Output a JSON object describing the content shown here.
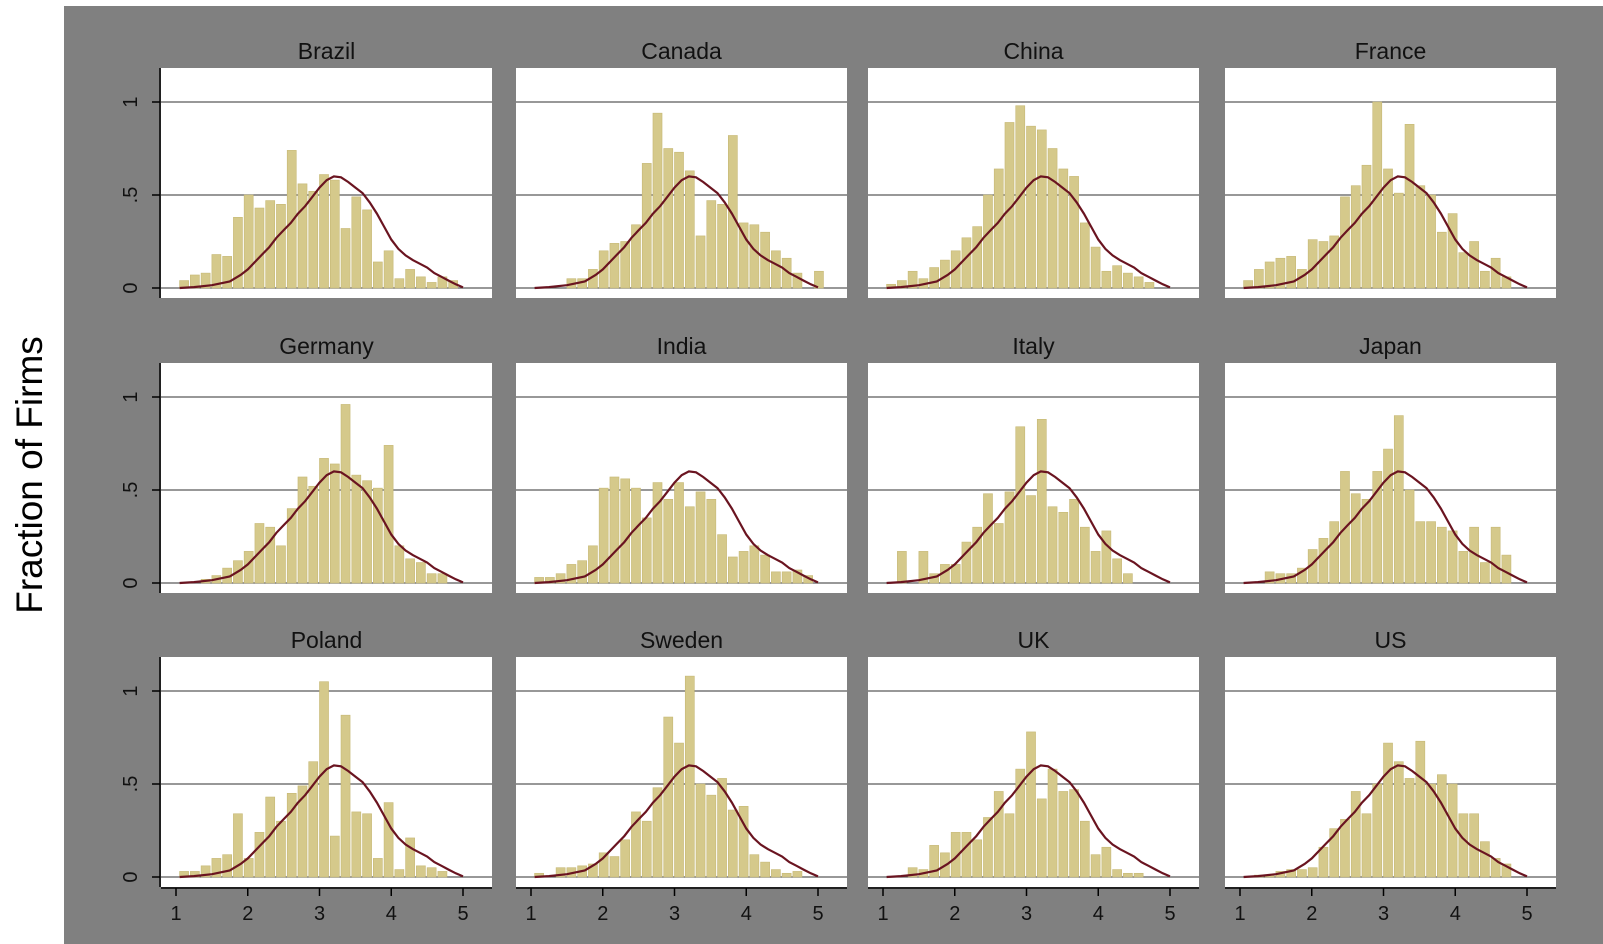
{
  "colors": {
    "background": "#ffffff",
    "graph_region": "#808080",
    "plot_area": "#ffffff",
    "grid": "#5a5a5a",
    "axis": "#000000",
    "bar_fill": "#d5c98b",
    "bar_edge": "#c6b875",
    "density_line": "#6a1420",
    "text": "#111111"
  },
  "chart_data": {
    "type": "bar",
    "layout": "small-multiples 3x4",
    "ytitle": "Fraction of Firms",
    "xlabel": "",
    "xlim": [
      1,
      5
    ],
    "ylim": [
      0,
      1
    ],
    "x_ticks": [
      "1",
      "2",
      "3",
      "4",
      "5"
    ],
    "y_ticks": [
      "0",
      ".5",
      "1"
    ],
    "grid": true,
    "density": {
      "x": [
        1.05,
        1.25,
        1.5,
        1.75,
        1.9,
        2.0,
        2.1,
        2.2,
        2.3,
        2.4,
        2.5,
        2.6,
        2.7,
        2.8,
        2.9,
        3.0,
        3.1,
        3.2,
        3.3,
        3.4,
        3.5,
        3.6,
        3.7,
        3.8,
        3.9,
        4.0,
        4.1,
        4.2,
        4.3,
        4.4,
        4.5,
        4.6,
        4.7,
        4.8,
        4.9,
        5.0
      ],
      "y": [
        0.0,
        0.005,
        0.015,
        0.035,
        0.07,
        0.1,
        0.14,
        0.18,
        0.22,
        0.27,
        0.31,
        0.35,
        0.4,
        0.44,
        0.49,
        0.54,
        0.58,
        0.6,
        0.595,
        0.57,
        0.54,
        0.51,
        0.46,
        0.4,
        0.33,
        0.26,
        0.21,
        0.175,
        0.15,
        0.13,
        0.11,
        0.08,
        0.06,
        0.04,
        0.02,
        0.003
      ]
    },
    "panels": [
      {
        "title": "Brazil",
        "bars": [
          [
            1.05,
            0.04
          ],
          [
            1.2,
            0.07
          ],
          [
            1.35,
            0.08
          ],
          [
            1.5,
            0.18
          ],
          [
            1.65,
            0.17
          ],
          [
            1.8,
            0.38
          ],
          [
            1.95,
            0.5
          ],
          [
            2.1,
            0.43
          ],
          [
            2.25,
            0.47
          ],
          [
            2.4,
            0.45
          ],
          [
            2.55,
            0.74
          ],
          [
            2.7,
            0.56
          ],
          [
            2.85,
            0.52
          ],
          [
            3.0,
            0.61
          ],
          [
            3.15,
            0.58
          ],
          [
            3.3,
            0.32
          ],
          [
            3.45,
            0.49
          ],
          [
            3.6,
            0.42
          ],
          [
            3.75,
            0.14
          ],
          [
            3.9,
            0.2
          ],
          [
            4.05,
            0.05
          ],
          [
            4.2,
            0.1
          ],
          [
            4.35,
            0.06
          ],
          [
            4.5,
            0.03
          ],
          [
            4.65,
            0.06
          ],
          [
            4.8,
            0.04
          ]
        ]
      },
      {
        "title": "Canada",
        "bars": [
          [
            1.5,
            0.05
          ],
          [
            1.65,
            0.05
          ],
          [
            1.8,
            0.1
          ],
          [
            1.95,
            0.2
          ],
          [
            2.1,
            0.24
          ],
          [
            2.25,
            0.25
          ],
          [
            2.4,
            0.34
          ],
          [
            2.55,
            0.67
          ],
          [
            2.7,
            0.94
          ],
          [
            2.85,
            0.75
          ],
          [
            3.0,
            0.73
          ],
          [
            3.15,
            0.63
          ],
          [
            3.3,
            0.28
          ],
          [
            3.45,
            0.47
          ],
          [
            3.6,
            0.45
          ],
          [
            3.75,
            0.82
          ],
          [
            3.9,
            0.35
          ],
          [
            4.05,
            0.34
          ],
          [
            4.2,
            0.3
          ],
          [
            4.35,
            0.2
          ],
          [
            4.5,
            0.16
          ],
          [
            4.65,
            0.08
          ],
          [
            4.95,
            0.09
          ]
        ]
      },
      {
        "title": "China",
        "bars": [
          [
            1.05,
            0.02
          ],
          [
            1.2,
            0.04
          ],
          [
            1.35,
            0.09
          ],
          [
            1.5,
            0.05
          ],
          [
            1.65,
            0.11
          ],
          [
            1.8,
            0.15
          ],
          [
            1.95,
            0.2
          ],
          [
            2.1,
            0.27
          ],
          [
            2.25,
            0.33
          ],
          [
            2.4,
            0.5
          ],
          [
            2.55,
            0.64
          ],
          [
            2.7,
            0.89
          ],
          [
            2.85,
            0.98
          ],
          [
            3.0,
            0.87
          ],
          [
            3.15,
            0.85
          ],
          [
            3.3,
            0.75
          ],
          [
            3.45,
            0.64
          ],
          [
            3.6,
            0.6
          ],
          [
            3.75,
            0.35
          ],
          [
            3.9,
            0.22
          ],
          [
            4.05,
            0.09
          ],
          [
            4.2,
            0.12
          ],
          [
            4.35,
            0.08
          ],
          [
            4.5,
            0.06
          ],
          [
            4.65,
            0.03
          ]
        ]
      },
      {
        "title": "France",
        "bars": [
          [
            1.05,
            0.04
          ],
          [
            1.2,
            0.1
          ],
          [
            1.35,
            0.14
          ],
          [
            1.5,
            0.16
          ],
          [
            1.65,
            0.17
          ],
          [
            1.8,
            0.1
          ],
          [
            1.95,
            0.26
          ],
          [
            2.1,
            0.25
          ],
          [
            2.25,
            0.28
          ],
          [
            2.4,
            0.49
          ],
          [
            2.55,
            0.55
          ],
          [
            2.7,
            0.66
          ],
          [
            2.85,
            1.0
          ],
          [
            3.0,
            0.64
          ],
          [
            3.15,
            0.51
          ],
          [
            3.3,
            0.88
          ],
          [
            3.45,
            0.55
          ],
          [
            3.6,
            0.5
          ],
          [
            3.75,
            0.3
          ],
          [
            3.9,
            0.4
          ],
          [
            4.05,
            0.19
          ],
          [
            4.2,
            0.25
          ],
          [
            4.35,
            0.09
          ],
          [
            4.5,
            0.16
          ],
          [
            4.65,
            0.06
          ]
        ]
      },
      {
        "title": "Germany",
        "bars": [
          [
            1.35,
            0.02
          ],
          [
            1.5,
            0.04
          ],
          [
            1.65,
            0.08
          ],
          [
            1.8,
            0.12
          ],
          [
            1.95,
            0.17
          ],
          [
            2.1,
            0.32
          ],
          [
            2.25,
            0.3
          ],
          [
            2.4,
            0.2
          ],
          [
            2.55,
            0.4
          ],
          [
            2.7,
            0.57
          ],
          [
            2.85,
            0.52
          ],
          [
            3.0,
            0.67
          ],
          [
            3.15,
            0.64
          ],
          [
            3.3,
            0.96
          ],
          [
            3.45,
            0.58
          ],
          [
            3.6,
            0.55
          ],
          [
            3.75,
            0.51
          ],
          [
            3.9,
            0.74
          ],
          [
            4.05,
            0.2
          ],
          [
            4.2,
            0.13
          ],
          [
            4.35,
            0.11
          ],
          [
            4.5,
            0.05
          ],
          [
            4.65,
            0.05
          ]
        ]
      },
      {
        "title": "India",
        "bars": [
          [
            1.05,
            0.03
          ],
          [
            1.2,
            0.03
          ],
          [
            1.35,
            0.05
          ],
          [
            1.5,
            0.1
          ],
          [
            1.65,
            0.12
          ],
          [
            1.8,
            0.2
          ],
          [
            1.95,
            0.51
          ],
          [
            2.1,
            0.57
          ],
          [
            2.25,
            0.56
          ],
          [
            2.4,
            0.51
          ],
          [
            2.55,
            0.35
          ],
          [
            2.7,
            0.54
          ],
          [
            2.85,
            0.45
          ],
          [
            3.0,
            0.54
          ],
          [
            3.15,
            0.41
          ],
          [
            3.3,
            0.49
          ],
          [
            3.45,
            0.45
          ],
          [
            3.6,
            0.26
          ],
          [
            3.75,
            0.14
          ],
          [
            3.9,
            0.17
          ],
          [
            4.05,
            0.2
          ],
          [
            4.2,
            0.15
          ],
          [
            4.35,
            0.06
          ],
          [
            4.5,
            0.06
          ],
          [
            4.65,
            0.07
          ],
          [
            4.8,
            0.04
          ]
        ]
      },
      {
        "title": "Italy",
        "bars": [
          [
            1.2,
            0.17
          ],
          [
            1.5,
            0.17
          ],
          [
            1.65,
            0.05
          ],
          [
            1.8,
            0.1
          ],
          [
            1.95,
            0.1
          ],
          [
            2.1,
            0.22
          ],
          [
            2.25,
            0.3
          ],
          [
            2.4,
            0.48
          ],
          [
            2.55,
            0.32
          ],
          [
            2.7,
            0.49
          ],
          [
            2.85,
            0.84
          ],
          [
            3.0,
            0.47
          ],
          [
            3.15,
            0.88
          ],
          [
            3.3,
            0.41
          ],
          [
            3.45,
            0.38
          ],
          [
            3.6,
            0.45
          ],
          [
            3.75,
            0.3
          ],
          [
            3.9,
            0.17
          ],
          [
            4.05,
            0.28
          ],
          [
            4.2,
            0.13
          ],
          [
            4.35,
            0.05
          ]
        ]
      },
      {
        "title": "Japan",
        "bars": [
          [
            1.35,
            0.06
          ],
          [
            1.5,
            0.05
          ],
          [
            1.65,
            0.05
          ],
          [
            1.8,
            0.08
          ],
          [
            1.95,
            0.18
          ],
          [
            2.1,
            0.24
          ],
          [
            2.25,
            0.33
          ],
          [
            2.4,
            0.6
          ],
          [
            2.55,
            0.48
          ],
          [
            2.7,
            0.45
          ],
          [
            2.85,
            0.6
          ],
          [
            3.0,
            0.72
          ],
          [
            3.15,
            0.9
          ],
          [
            3.3,
            0.5
          ],
          [
            3.45,
            0.33
          ],
          [
            3.6,
            0.33
          ],
          [
            3.75,
            0.3
          ],
          [
            3.9,
            0.28
          ],
          [
            4.05,
            0.17
          ],
          [
            4.2,
            0.3
          ],
          [
            4.35,
            0.11
          ],
          [
            4.5,
            0.3
          ],
          [
            4.65,
            0.15
          ]
        ]
      },
      {
        "title": "Poland",
        "bars": [
          [
            1.05,
            0.03
          ],
          [
            1.2,
            0.03
          ],
          [
            1.35,
            0.06
          ],
          [
            1.5,
            0.1
          ],
          [
            1.65,
            0.12
          ],
          [
            1.8,
            0.34
          ],
          [
            1.95,
            0.1
          ],
          [
            2.1,
            0.24
          ],
          [
            2.25,
            0.43
          ],
          [
            2.4,
            0.3
          ],
          [
            2.55,
            0.45
          ],
          [
            2.7,
            0.49
          ],
          [
            2.85,
            0.62
          ],
          [
            3.0,
            1.05
          ],
          [
            3.15,
            0.22
          ],
          [
            3.3,
            0.87
          ],
          [
            3.45,
            0.35
          ],
          [
            3.6,
            0.34
          ],
          [
            3.75,
            0.1
          ],
          [
            3.9,
            0.4
          ],
          [
            4.05,
            0.04
          ],
          [
            4.2,
            0.21
          ],
          [
            4.35,
            0.06
          ],
          [
            4.5,
            0.05
          ],
          [
            4.65,
            0.03
          ]
        ]
      },
      {
        "title": "Sweden",
        "bars": [
          [
            1.05,
            0.02
          ],
          [
            1.35,
            0.05
          ],
          [
            1.5,
            0.05
          ],
          [
            1.65,
            0.06
          ],
          [
            1.8,
            0.07
          ],
          [
            1.95,
            0.13
          ],
          [
            2.1,
            0.11
          ],
          [
            2.25,
            0.2
          ],
          [
            2.4,
            0.35
          ],
          [
            2.55,
            0.3
          ],
          [
            2.7,
            0.48
          ],
          [
            2.85,
            0.86
          ],
          [
            3.0,
            0.72
          ],
          [
            3.15,
            1.08
          ],
          [
            3.3,
            0.5
          ],
          [
            3.45,
            0.44
          ],
          [
            3.6,
            0.53
          ],
          [
            3.75,
            0.36
          ],
          [
            3.9,
            0.38
          ],
          [
            4.05,
            0.12
          ],
          [
            4.2,
            0.08
          ],
          [
            4.35,
            0.04
          ],
          [
            4.5,
            0.02
          ],
          [
            4.65,
            0.03
          ]
        ]
      },
      {
        "title": "UK",
        "bars": [
          [
            1.35,
            0.05
          ],
          [
            1.5,
            0.04
          ],
          [
            1.65,
            0.17
          ],
          [
            1.8,
            0.13
          ],
          [
            1.95,
            0.24
          ],
          [
            2.1,
            0.24
          ],
          [
            2.25,
            0.2
          ],
          [
            2.4,
            0.32
          ],
          [
            2.55,
            0.46
          ],
          [
            2.7,
            0.34
          ],
          [
            2.85,
            0.58
          ],
          [
            3.0,
            0.78
          ],
          [
            3.15,
            0.42
          ],
          [
            3.3,
            0.58
          ],
          [
            3.45,
            0.46
          ],
          [
            3.6,
            0.47
          ],
          [
            3.75,
            0.3
          ],
          [
            3.9,
            0.12
          ],
          [
            4.05,
            0.16
          ],
          [
            4.2,
            0.04
          ],
          [
            4.35,
            0.02
          ],
          [
            4.5,
            0.02
          ]
        ]
      },
      {
        "title": "US",
        "bars": [
          [
            1.2,
            0.01
          ],
          [
            1.35,
            0.01
          ],
          [
            1.5,
            0.03
          ],
          [
            1.65,
            0.04
          ],
          [
            1.8,
            0.04
          ],
          [
            1.95,
            0.05
          ],
          [
            2.1,
            0.16
          ],
          [
            2.25,
            0.26
          ],
          [
            2.4,
            0.31
          ],
          [
            2.55,
            0.46
          ],
          [
            2.7,
            0.34
          ],
          [
            2.85,
            0.5
          ],
          [
            3.0,
            0.72
          ],
          [
            3.15,
            0.62
          ],
          [
            3.3,
            0.53
          ],
          [
            3.45,
            0.73
          ],
          [
            3.6,
            0.5
          ],
          [
            3.75,
            0.55
          ],
          [
            3.9,
            0.5
          ],
          [
            4.05,
            0.34
          ],
          [
            4.2,
            0.34
          ],
          [
            4.35,
            0.19
          ],
          [
            4.5,
            0.1
          ],
          [
            4.65,
            0.07
          ]
        ]
      }
    ]
  }
}
